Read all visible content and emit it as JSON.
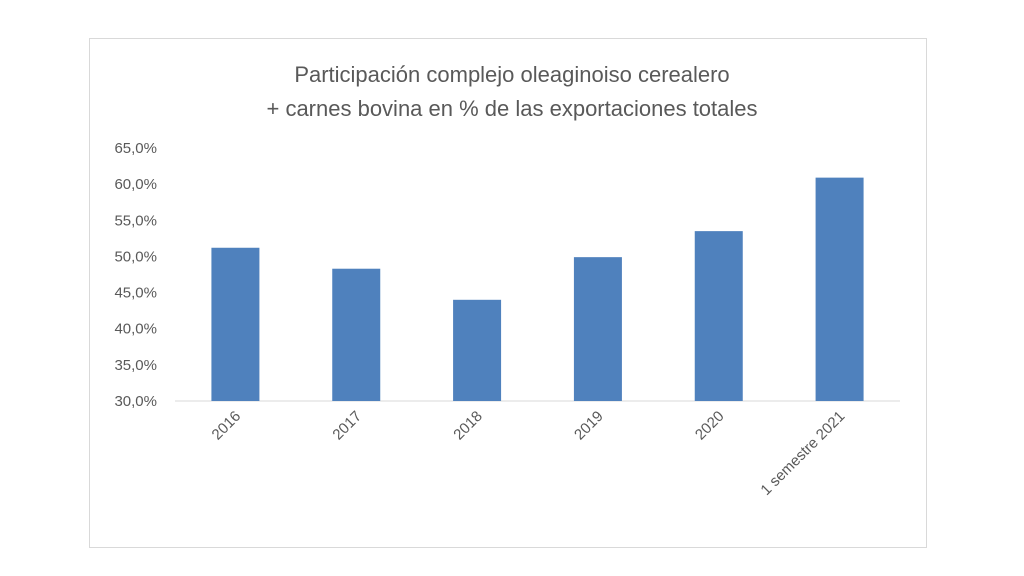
{
  "chart_data": {
    "type": "bar",
    "title": [
      "Participación complejo oleaginoiso cerealero",
      "+ carnes bovina en % de las exportaciones totales"
    ],
    "categories": [
      "2016",
      "2017",
      "2018",
      "2019",
      "2020",
      "1 semestre 2021"
    ],
    "values": [
      51.2,
      48.3,
      44.0,
      49.9,
      53.5,
      60.9
    ],
    "ylim": [
      30,
      65
    ],
    "yticks": [
      "30,0%",
      "35,0%",
      "40,0%",
      "45,0%",
      "50,0%",
      "55,0%",
      "60,0%",
      "65,0%"
    ],
    "xlabel": "",
    "ylabel": "",
    "grid": false,
    "bar_color": "#4f81bd"
  }
}
